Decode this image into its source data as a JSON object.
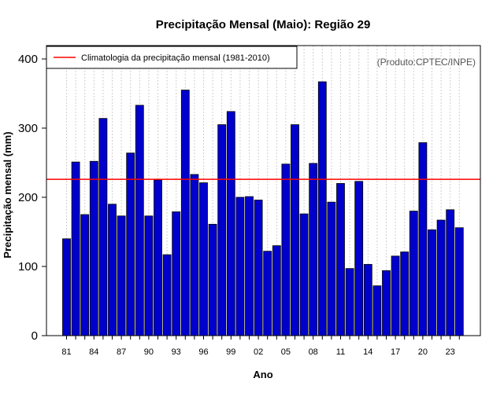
{
  "chart_data": {
    "type": "bar",
    "title": "Precipitação Mensal (Maio): Região 29",
    "xlabel": "Ano",
    "ylabel": "Precipitação mensal (mm)",
    "credit": "(Produto:CPTEC/INPE)",
    "ylim": [
      0,
      400
    ],
    "yticks": [
      0,
      100,
      200,
      300,
      400
    ],
    "ytick_labels": [
      "0",
      "100",
      "200",
      "300",
      "400"
    ],
    "grid": "vertical dotted",
    "legend": {
      "position": "top-left",
      "label": "Climatologia da precipitação mensal (1981-2010)"
    },
    "reference_line": {
      "value": 226,
      "color": "#ff0000",
      "label": "Climatologia da precipitação mensal (1981-2010)"
    },
    "bar_color": "#0000cc",
    "categories": [
      "81",
      "82",
      "83",
      "84",
      "85",
      "86",
      "87",
      "88",
      "89",
      "90",
      "91",
      "92",
      "93",
      "94",
      "95",
      "96",
      "97",
      "98",
      "99",
      "00",
      "01",
      "02",
      "03",
      "04",
      "05",
      "06",
      "07",
      "08",
      "09",
      "10",
      "11",
      "12",
      "13",
      "14",
      "15",
      "16",
      "17",
      "18",
      "19",
      "20",
      "21",
      "22",
      "23",
      "24"
    ],
    "xtick_labels": [
      "81",
      "84",
      "87",
      "90",
      "93",
      "96",
      "99",
      "02",
      "05",
      "08",
      "11",
      "14",
      "17",
      "20",
      "23"
    ],
    "values": [
      140,
      251,
      175,
      252,
      314,
      190,
      173,
      264,
      333,
      173,
      225,
      117,
      179,
      355,
      233,
      221,
      161,
      305,
      324,
      200,
      201,
      196,
      122,
      130,
      248,
      305,
      176,
      249,
      367,
      193,
      220,
      97,
      223,
      103,
      72,
      94,
      115,
      121,
      180,
      279,
      153,
      167,
      182,
      156
    ]
  }
}
